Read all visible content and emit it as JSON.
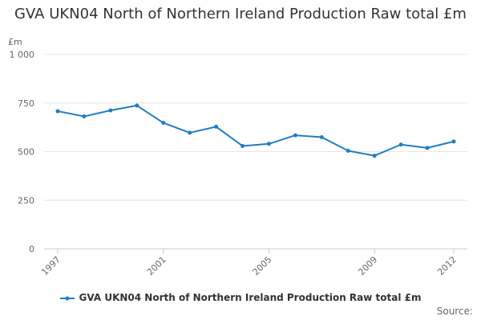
{
  "chart_data": {
    "type": "line",
    "title": "GVA UKN04 North of Northern Ireland Production Raw total £m",
    "ylabel": "£m",
    "xlabel": "",
    "ylim": [
      0,
      1000
    ],
    "y_ticks": [
      {
        "value": 0,
        "label": "0"
      },
      {
        "value": 250,
        "label": "250"
      },
      {
        "value": 500,
        "label": "500"
      },
      {
        "value": 750,
        "label": "750"
      },
      {
        "value": 1000,
        "label": "1 000"
      }
    ],
    "x": [
      1997,
      1998,
      1999,
      2000,
      2001,
      2002,
      2003,
      2004,
      2005,
      2006,
      2007,
      2008,
      2009,
      2010,
      2011,
      2012
    ],
    "x_ticks": [
      "1997",
      "2001",
      "2005",
      "2009",
      "2012"
    ],
    "series": [
      {
        "name": "GVA UKN04 North of Northern Ireland Production Raw total £m",
        "color": "#1f7ec1",
        "values": [
          708,
          681,
          712,
          737,
          648,
          597,
          628,
          529,
          540,
          584,
          574,
          504,
          479,
          536,
          519,
          552
        ]
      }
    ],
    "grid": true,
    "legend_position": "bottom",
    "source_label": "Source:"
  }
}
